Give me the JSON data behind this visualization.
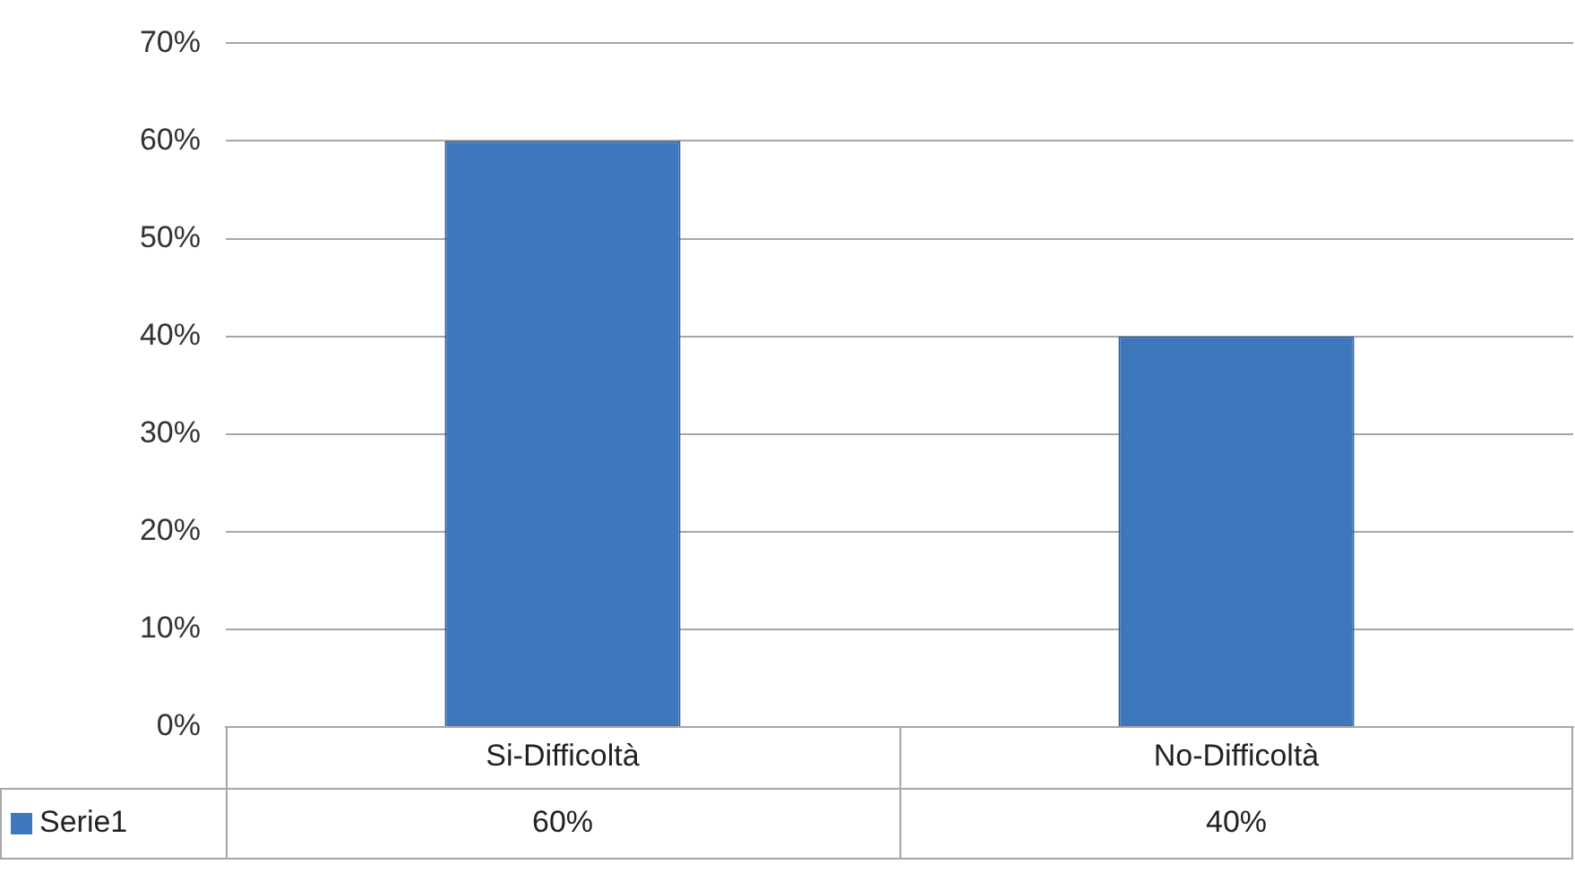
{
  "chart_data": {
    "type": "bar",
    "categories": [
      "Si-Difficoltà",
      "No-Difficoltà"
    ],
    "series": [
      {
        "name": "Serie1",
        "color": "#3f77bd",
        "values": [
          60,
          40
        ]
      }
    ],
    "ylim": [
      0,
      70
    ],
    "yticks": [
      {
        "value": 0,
        "label": "0%"
      },
      {
        "value": 10,
        "label": "10%"
      },
      {
        "value": 20,
        "label": "20%"
      },
      {
        "value": 30,
        "label": "30%"
      },
      {
        "value": 40,
        "label": "40%"
      },
      {
        "value": 50,
        "label": "50%"
      },
      {
        "value": 60,
        "label": "60%"
      },
      {
        "value": 70,
        "label": "70%"
      }
    ],
    "value_labels": [
      "60%",
      "40%"
    ],
    "grid": "y",
    "legend": "bottom left"
  }
}
